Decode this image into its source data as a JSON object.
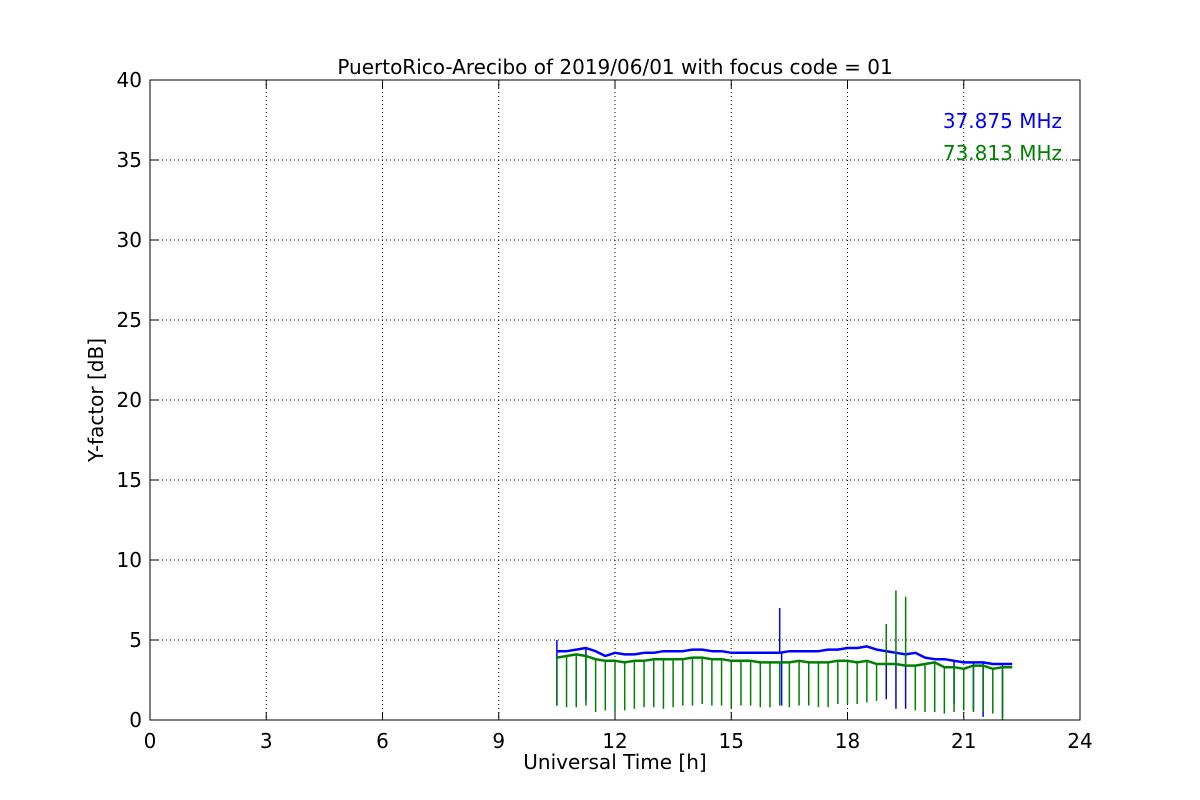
{
  "chart_data": {
    "type": "line",
    "title": "PuertoRico-Arecibo of 2019/06/01 with focus code = 01",
    "xlabel": "Universal Time [h]",
    "ylabel": "Y-factor [dB]",
    "xlim": [
      0,
      24
    ],
    "ylim": [
      0,
      40
    ],
    "xticks": [
      0,
      3,
      6,
      9,
      12,
      15,
      18,
      21,
      24
    ],
    "yticks": [
      0,
      5,
      10,
      15,
      20,
      25,
      30,
      35,
      40
    ],
    "grid": true,
    "legend_position": "top-right",
    "series": [
      {
        "name": "37.875 MHz",
        "color": "#0000ff",
        "x": [
          10.5,
          10.75,
          11.0,
          11.25,
          11.5,
          11.75,
          12.0,
          12.25,
          12.5,
          12.75,
          13.0,
          13.25,
          13.5,
          13.75,
          14.0,
          14.25,
          14.5,
          14.75,
          15.0,
          15.25,
          15.5,
          15.75,
          16.0,
          16.25,
          16.5,
          16.75,
          17.0,
          17.25,
          17.5,
          17.75,
          18.0,
          18.25,
          18.5,
          18.75,
          19.0,
          19.25,
          19.5,
          19.75,
          20.0,
          20.25,
          20.5,
          20.75,
          21.0,
          21.25,
          21.5,
          21.75,
          22.0,
          22.25
        ],
        "y": [
          4.3,
          4.3,
          4.4,
          4.5,
          4.3,
          4.0,
          4.2,
          4.1,
          4.1,
          4.2,
          4.2,
          4.3,
          4.3,
          4.3,
          4.4,
          4.4,
          4.3,
          4.3,
          4.2,
          4.2,
          4.2,
          4.2,
          4.2,
          4.2,
          4.3,
          4.3,
          4.3,
          4.3,
          4.4,
          4.4,
          4.5,
          4.5,
          4.6,
          4.4,
          4.3,
          4.2,
          4.1,
          4.2,
          3.9,
          3.8,
          3.8,
          3.7,
          3.6,
          3.6,
          3.6,
          3.5,
          3.5,
          3.5
        ],
        "spikes": [
          [
            10.5,
            0.9
          ],
          [
            10.5,
            5.0
          ],
          [
            11.25,
            1.2
          ],
          [
            16.25,
            7.0
          ],
          [
            16.3,
            0.9
          ],
          [
            19.0,
            1.3
          ],
          [
            19.25,
            0.7
          ],
          [
            19.5,
            0.7
          ],
          [
            20.75,
            1.0
          ],
          [
            21.25,
            0.6
          ],
          [
            21.5,
            0.2
          ],
          [
            22.0,
            0.2
          ]
        ]
      },
      {
        "name": "73.813 MHz",
        "color": "#008000",
        "x": [
          10.5,
          10.75,
          11.0,
          11.25,
          11.5,
          11.75,
          12.0,
          12.25,
          12.5,
          12.75,
          13.0,
          13.25,
          13.5,
          13.75,
          14.0,
          14.25,
          14.5,
          14.75,
          15.0,
          15.25,
          15.5,
          15.75,
          16.0,
          16.25,
          16.5,
          16.75,
          17.0,
          17.25,
          17.5,
          17.75,
          18.0,
          18.25,
          18.5,
          18.75,
          19.0,
          19.25,
          19.5,
          19.75,
          20.0,
          20.25,
          20.5,
          20.75,
          21.0,
          21.25,
          21.5,
          21.75,
          22.0,
          22.25
        ],
        "y": [
          3.9,
          4.0,
          4.1,
          4.0,
          3.8,
          3.7,
          3.7,
          3.6,
          3.7,
          3.7,
          3.8,
          3.8,
          3.8,
          3.8,
          3.9,
          3.9,
          3.8,
          3.8,
          3.7,
          3.7,
          3.7,
          3.6,
          3.6,
          3.6,
          3.6,
          3.7,
          3.6,
          3.6,
          3.6,
          3.7,
          3.7,
          3.6,
          3.7,
          3.5,
          3.5,
          3.5,
          3.4,
          3.4,
          3.5,
          3.6,
          3.3,
          3.3,
          3.2,
          3.4,
          3.4,
          3.2,
          3.3,
          3.3
        ],
        "spikes": [
          [
            10.5,
            0.9
          ],
          [
            10.75,
            0.8
          ],
          [
            11.0,
            0.8
          ],
          [
            11.25,
            0.9
          ],
          [
            11.5,
            0.5
          ],
          [
            11.75,
            0.6
          ],
          [
            12.0,
            0.5
          ],
          [
            12.25,
            0.6
          ],
          [
            12.5,
            0.7
          ],
          [
            12.75,
            0.8
          ],
          [
            13.0,
            0.8
          ],
          [
            13.25,
            0.7
          ],
          [
            13.5,
            0.8
          ],
          [
            13.75,
            0.9
          ],
          [
            14.0,
            0.9
          ],
          [
            14.25,
            1.0
          ],
          [
            14.5,
            0.9
          ],
          [
            14.75,
            0.9
          ],
          [
            15.0,
            0.7
          ],
          [
            15.25,
            0.9
          ],
          [
            15.5,
            0.9
          ],
          [
            15.75,
            0.8
          ],
          [
            16.0,
            0.8
          ],
          [
            16.25,
            0.9
          ],
          [
            16.5,
            0.8
          ],
          [
            16.75,
            0.9
          ],
          [
            17.0,
            0.9
          ],
          [
            17.25,
            0.8
          ],
          [
            17.5,
            0.8
          ],
          [
            17.75,
            1.0
          ],
          [
            18.0,
            1.0
          ],
          [
            18.25,
            1.0
          ],
          [
            18.5,
            1.1
          ],
          [
            18.75,
            1.2
          ],
          [
            19.0,
            6.0
          ],
          [
            19.25,
            8.1
          ],
          [
            19.5,
            7.7
          ],
          [
            19.75,
            0.6
          ],
          [
            20.0,
            0.5
          ],
          [
            20.25,
            0.5
          ],
          [
            20.5,
            0.4
          ],
          [
            20.75,
            0.5
          ],
          [
            21.0,
            0.6
          ],
          [
            21.25,
            0.5
          ],
          [
            21.5,
            0.5
          ],
          [
            21.75,
            0.4
          ],
          [
            22.0,
            0.0
          ]
        ]
      }
    ]
  }
}
